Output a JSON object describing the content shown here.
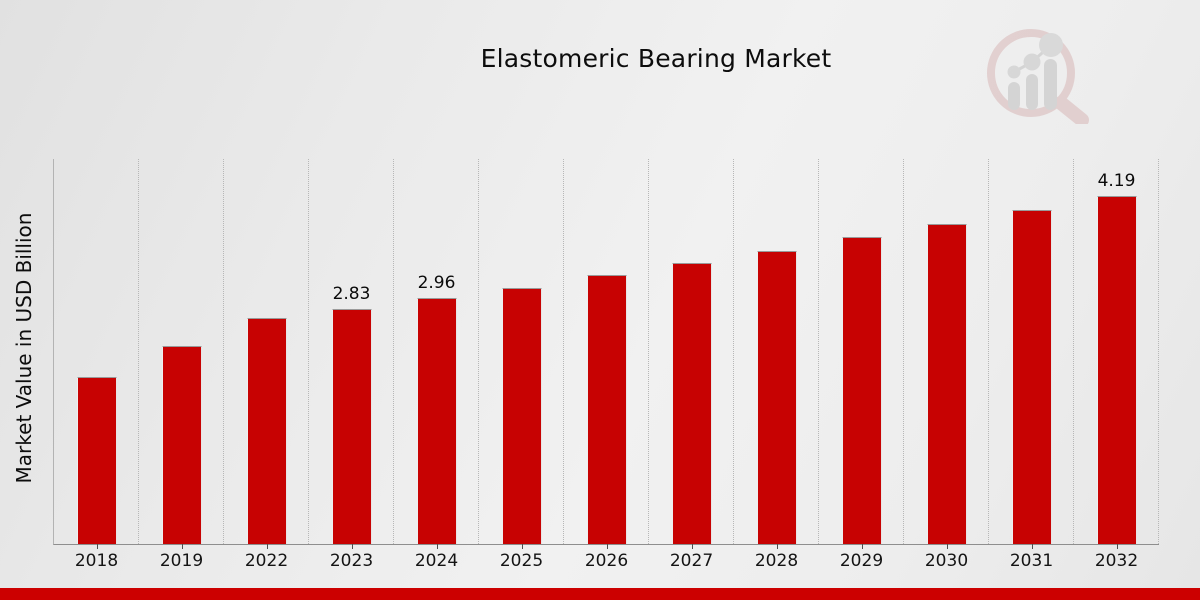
{
  "header": {
    "title": "Elastomeric Bearing Market"
  },
  "colors": {
    "bar": "#c70202",
    "footer_band": "#cc0000",
    "background": "#ebebeb",
    "gridline": "#b7b7b7"
  },
  "icons": {
    "logo": "magnifier-bar-chart-watermark-icon"
  },
  "chart_data": {
    "type": "bar",
    "title": "Elastomeric Bearing Market",
    "xlabel": "",
    "ylabel": "Market Value in USD Billion",
    "categories": [
      "2018",
      "2019",
      "2022",
      "2023",
      "2024",
      "2025",
      "2026",
      "2027",
      "2028",
      "2029",
      "2030",
      "2031",
      "2032"
    ],
    "values": [
      2.01,
      2.38,
      2.72,
      2.83,
      2.96,
      3.08,
      3.24,
      3.38,
      3.53,
      3.7,
      3.85,
      4.03,
      4.19
    ],
    "point_labels": {
      "2023": "2.83",
      "2024": "2.96",
      "2032": "4.19"
    },
    "ylim": [
      0,
      4.64
    ],
    "y_tick_labels": "none",
    "grid": "vertical-dotted",
    "legend": "none",
    "bar_color": "#c70202"
  },
  "footer": {
    "band": "red-accent-band"
  }
}
